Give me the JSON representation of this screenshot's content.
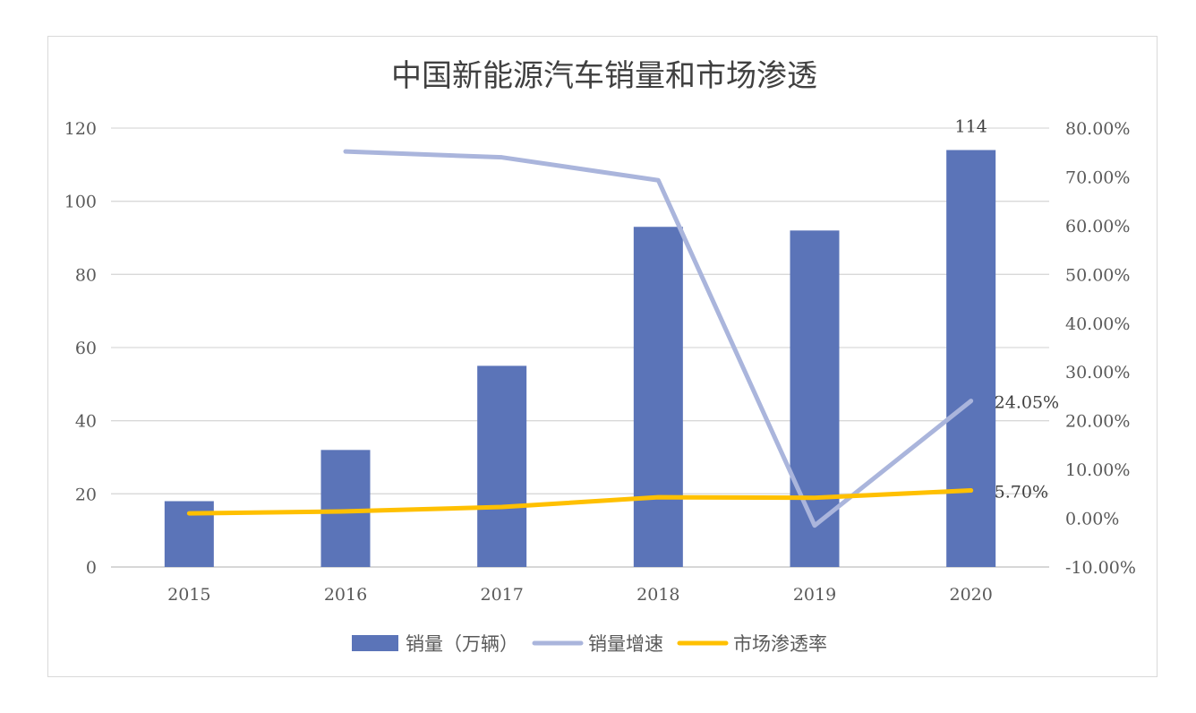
{
  "chart_data": {
    "type": "bar",
    "title": "中国新能源汽车销量和市场渗透",
    "categories": [
      "2015",
      "2016",
      "2017",
      "2018",
      "2019",
      "2020"
    ],
    "series": [
      {
        "name": "销量（万辆）",
        "type": "bar",
        "axis": "left",
        "values": [
          18,
          32,
          55,
          93,
          92,
          114
        ],
        "color": "#5b74b8"
      },
      {
        "name": "销量增速",
        "type": "line",
        "axis": "right",
        "values": [
          null,
          75.2,
          74.0,
          69.3,
          -1.5,
          24.05
        ],
        "color": "#aab5dc"
      },
      {
        "name": "市场渗透率",
        "type": "line",
        "axis": "right",
        "values": [
          1.0,
          1.4,
          2.3,
          4.3,
          4.2,
          5.7
        ],
        "color": "#ffc000"
      }
    ],
    "left_axis": {
      "ylim": [
        0,
        120
      ],
      "ticks": [
        "0",
        "20",
        "40",
        "60",
        "80",
        "100",
        "120"
      ]
    },
    "right_axis": {
      "ylim": [
        -10,
        80
      ],
      "ticks": [
        "-10.00%",
        "0.00%",
        "10.00%",
        "20.00%",
        "30.00%",
        "40.00%",
        "50.00%",
        "60.00%",
        "70.00%",
        "80.00%"
      ]
    },
    "data_labels": [
      {
        "series": "销量（万辆）",
        "category": "2020",
        "text": "114"
      },
      {
        "series": "销量增速",
        "category": "2020",
        "text": "24.05%"
      },
      {
        "series": "市场渗透率",
        "category": "2020",
        "text": "5.70%"
      }
    ],
    "grid": true,
    "legend_position": "bottom"
  }
}
